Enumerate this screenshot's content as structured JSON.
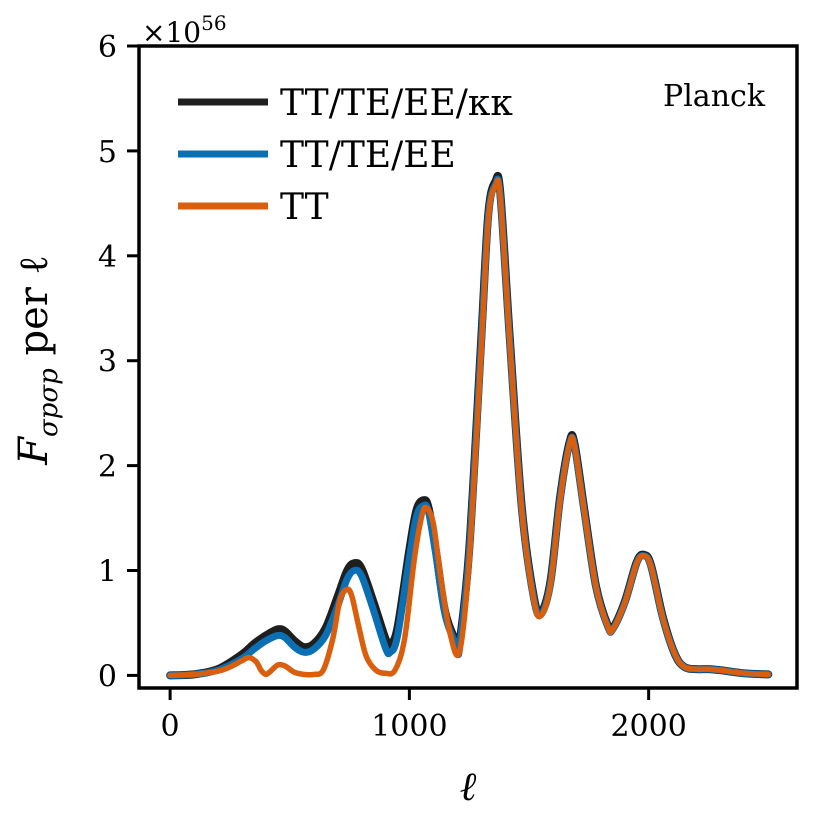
{
  "chart_data": {
    "type": "line",
    "xlabel": "ℓ",
    "ylabel_main": "F",
    "ylabel_sub": "σpσp",
    "ylabel_rest": " per ℓ",
    "y_multiplier_base": "×10",
    "y_multiplier_exp": "56",
    "annotation": "Planck",
    "xlim": [
      -130,
      2620
    ],
    "ylim": [
      -0.12,
      6.0
    ],
    "xticks": [
      0,
      1000,
      2000
    ],
    "xtick_labels": [
      "0",
      "1000",
      "2000"
    ],
    "yticks": [
      0,
      1,
      2,
      3,
      4,
      5,
      6
    ],
    "ytick_labels": [
      "0",
      "1",
      "2",
      "3",
      "4",
      "5",
      "6"
    ],
    "grid": false,
    "legend_position": "upper-left",
    "series": [
      {
        "name": "TT/TE/EE/κκ",
        "color": "#1f1f1f",
        "x": [
          0,
          100,
          200,
          300,
          350,
          400,
          450,
          480,
          520,
          560,
          600,
          650,
          700,
          740,
          770,
          800,
          850,
          900,
          920,
          950,
          1000,
          1030,
          1060,
          1080,
          1110,
          1150,
          1200,
          1210,
          1250,
          1300,
          1330,
          1360,
          1380,
          1420,
          1470,
          1520,
          1550,
          1590,
          1630,
          1670,
          1690,
          1730,
          1780,
          1830,
          1850,
          1900,
          1950,
          1980,
          2010,
          2060,
          2110,
          2150,
          2200,
          2250,
          2300,
          2400,
          2500
        ],
        "y": [
          0.0,
          0.01,
          0.06,
          0.2,
          0.3,
          0.38,
          0.44,
          0.42,
          0.33,
          0.27,
          0.3,
          0.45,
          0.75,
          1.0,
          1.07,
          1.02,
          0.7,
          0.35,
          0.3,
          0.45,
          1.2,
          1.58,
          1.67,
          1.6,
          1.2,
          0.6,
          0.3,
          0.31,
          1.2,
          3.2,
          4.4,
          4.71,
          4.6,
          3.2,
          1.6,
          0.75,
          0.6,
          0.9,
          1.7,
          2.23,
          2.21,
          1.6,
          0.85,
          0.47,
          0.45,
          0.7,
          1.08,
          1.15,
          1.05,
          0.55,
          0.2,
          0.08,
          0.06,
          0.06,
          0.05,
          0.02,
          0.01
        ]
      },
      {
        "name": "TT/TE/EE",
        "color": "#0a6fb3",
        "x": [
          0,
          100,
          200,
          300,
          350,
          400,
          450,
          480,
          520,
          560,
          600,
          650,
          700,
          740,
          770,
          800,
          850,
          900,
          920,
          950,
          1000,
          1030,
          1060,
          1080,
          1110,
          1150,
          1200,
          1210,
          1250,
          1300,
          1330,
          1360,
          1380,
          1420,
          1470,
          1520,
          1550,
          1590,
          1630,
          1670,
          1690,
          1730,
          1780,
          1830,
          1850,
          1900,
          1950,
          1980,
          2010,
          2060,
          2110,
          2150,
          2200,
          2250,
          2300,
          2400,
          2500
        ],
        "y": [
          0.0,
          0.01,
          0.05,
          0.16,
          0.25,
          0.33,
          0.38,
          0.36,
          0.27,
          0.22,
          0.25,
          0.38,
          0.66,
          0.92,
          1.0,
          0.95,
          0.62,
          0.26,
          0.22,
          0.37,
          1.12,
          1.52,
          1.62,
          1.56,
          1.16,
          0.57,
          0.27,
          0.28,
          1.16,
          3.15,
          4.37,
          4.68,
          4.57,
          3.17,
          1.58,
          0.73,
          0.58,
          0.88,
          1.68,
          2.21,
          2.19,
          1.58,
          0.84,
          0.46,
          0.44,
          0.69,
          1.07,
          1.14,
          1.04,
          0.54,
          0.2,
          0.08,
          0.06,
          0.06,
          0.05,
          0.02,
          0.01
        ]
      },
      {
        "name": "TT",
        "color": "#d95f0e",
        "x": [
          0,
          100,
          200,
          250,
          300,
          330,
          360,
          380,
          400,
          420,
          450,
          480,
          520,
          560,
          600,
          640,
          680,
          710,
          740,
          760,
          790,
          820,
          860,
          900,
          940,
          980,
          1020,
          1050,
          1070,
          1100,
          1130,
          1170,
          1210,
          1250,
          1300,
          1330,
          1360,
          1380,
          1420,
          1470,
          1520,
          1550,
          1590,
          1630,
          1670,
          1690,
          1730,
          1780,
          1830,
          1850,
          1900,
          1950,
          1980,
          2010,
          2060,
          2110,
          2150,
          2200,
          2250,
          2300,
          2400,
          2500
        ],
        "y": [
          0.0,
          0.01,
          0.04,
          0.08,
          0.14,
          0.17,
          0.13,
          0.05,
          0.01,
          0.04,
          0.1,
          0.09,
          0.03,
          0.01,
          0.01,
          0.05,
          0.35,
          0.72,
          0.82,
          0.75,
          0.45,
          0.18,
          0.05,
          0.02,
          0.05,
          0.35,
          1.1,
          1.5,
          1.6,
          1.45,
          0.95,
          0.4,
          0.23,
          1.1,
          3.1,
          4.35,
          4.67,
          4.56,
          3.16,
          1.57,
          0.72,
          0.57,
          0.87,
          1.67,
          2.21,
          2.19,
          1.58,
          0.84,
          0.46,
          0.44,
          0.69,
          1.07,
          1.14,
          1.04,
          0.54,
          0.2,
          0.08,
          0.06,
          0.06,
          0.05,
          0.02,
          0.01
        ]
      }
    ]
  }
}
